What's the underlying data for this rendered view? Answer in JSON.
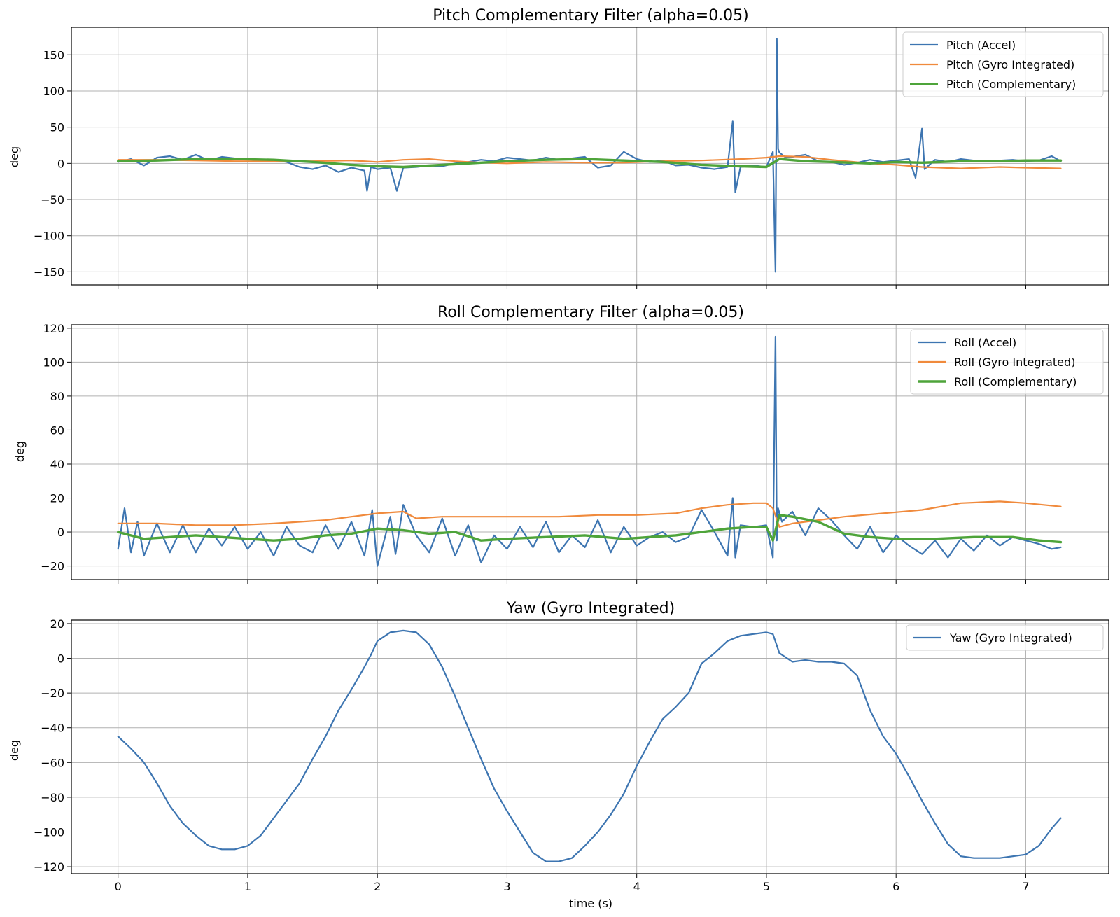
{
  "chart_data": [
    {
      "type": "line",
      "title": "Pitch Complementary Filter (alpha=0.05)",
      "xlabel": "",
      "ylabel": "deg",
      "xlim": [
        -0.36,
        7.64
      ],
      "ylim": [
        -168,
        188
      ],
      "xticks": [
        0,
        1,
        2,
        3,
        4,
        5,
        6,
        7
      ],
      "yticks": [
        -150,
        -100,
        -50,
        0,
        50,
        100,
        150
      ],
      "ytick_labels": [
        "−150",
        "−100",
        "−50",
        "0",
        "50",
        "100",
        "150"
      ],
      "grid": true,
      "legend": "top-right",
      "series": [
        {
          "name": "Pitch (Accel)",
          "color": "#3d75b1",
          "width": 2.2,
          "x": [
            0,
            0.1,
            0.2,
            0.3,
            0.4,
            0.5,
            0.6,
            0.7,
            0.8,
            0.9,
            1.0,
            1.1,
            1.2,
            1.3,
            1.4,
            1.5,
            1.6,
            1.7,
            1.8,
            1.9,
            1.92,
            1.95,
            2.0,
            2.1,
            2.15,
            2.2,
            2.3,
            2.4,
            2.5,
            2.6,
            2.7,
            2.8,
            2.9,
            3.0,
            3.1,
            3.2,
            3.3,
            3.4,
            3.5,
            3.6,
            3.7,
            3.8,
            3.9,
            4.0,
            4.1,
            4.2,
            4.3,
            4.4,
            4.5,
            4.6,
            4.7,
            4.74,
            4.76,
            4.8,
            4.9,
            5.0,
            5.05,
            5.07,
            5.08,
            5.09,
            5.1,
            5.15,
            5.2,
            5.3,
            5.4,
            5.5,
            5.6,
            5.7,
            5.8,
            5.9,
            6.0,
            6.1,
            6.15,
            6.2,
            6.22,
            6.3,
            6.4,
            6.5,
            6.6,
            6.7,
            6.8,
            6.9,
            7.0,
            7.1,
            7.2,
            7.27
          ],
          "values": [
            2,
            6,
            -3,
            8,
            10,
            5,
            12,
            4,
            9,
            7,
            6,
            3,
            4,
            2,
            -5,
            -8,
            -3,
            -12,
            -6,
            -10,
            -38,
            -5,
            -8,
            -6,
            -38,
            -6,
            -5,
            -3,
            -4,
            0,
            2,
            5,
            3,
            8,
            6,
            4,
            8,
            5,
            7,
            9,
            -6,
            -3,
            16,
            6,
            2,
            4,
            -3,
            -2,
            -6,
            -8,
            -5,
            58,
            -40,
            -5,
            -3,
            -5,
            16,
            -150,
            172,
            20,
            15,
            8,
            9,
            12,
            3,
            2,
            -2,
            1,
            5,
            2,
            4,
            6,
            -20,
            48,
            -8,
            5,
            2,
            6,
            4,
            3,
            4,
            5,
            3,
            4,
            10,
            3
          ]
        },
        {
          "name": "Pitch (Gyro Integrated)",
          "color": "#f08a3c",
          "width": 2.2,
          "x": [
            0,
            0.3,
            0.6,
            0.9,
            1.2,
            1.5,
            1.8,
            2.0,
            2.2,
            2.4,
            2.6,
            2.8,
            3.0,
            3.3,
            3.6,
            3.9,
            4.2,
            4.5,
            4.8,
            5.0,
            5.1,
            5.3,
            5.5,
            5.8,
            6.0,
            6.2,
            6.5,
            6.8,
            7.0,
            7.27
          ],
          "values": [
            5,
            5,
            4,
            3,
            3,
            3,
            4,
            2,
            5,
            6,
            3,
            1,
            0,
            2,
            1,
            1,
            3,
            4,
            6,
            8,
            10,
            9,
            5,
            0,
            -2,
            -5,
            -7,
            -5,
            -6,
            -7
          ]
        },
        {
          "name": "Pitch (Complementary)",
          "color": "#4ea43a",
          "width": 3.4,
          "x": [
            0,
            0.3,
            0.6,
            0.9,
            1.2,
            1.5,
            1.8,
            2.0,
            2.2,
            2.4,
            2.6,
            2.8,
            3.0,
            3.3,
            3.6,
            3.9,
            4.2,
            4.5,
            4.8,
            5.0,
            5.1,
            5.3,
            5.5,
            5.8,
            6.0,
            6.2,
            6.5,
            6.8,
            7.0,
            7.27
          ],
          "values": [
            3,
            4,
            6,
            6,
            5,
            2,
            -2,
            -4,
            -5,
            -3,
            -1,
            1,
            3,
            5,
            6,
            4,
            2,
            -2,
            -4,
            -5,
            6,
            3,
            2,
            0,
            2,
            1,
            3,
            3,
            4,
            4
          ]
        }
      ]
    },
    {
      "type": "line",
      "title": "Roll Complementary Filter (alpha=0.05)",
      "xlabel": "",
      "ylabel": "deg",
      "xlim": [
        -0.36,
        7.64
      ],
      "ylim": [
        -28,
        122
      ],
      "xticks": [
        0,
        1,
        2,
        3,
        4,
        5,
        6,
        7
      ],
      "yticks": [
        -20,
        0,
        20,
        40,
        60,
        80,
        100,
        120
      ],
      "ytick_labels": [
        "−20",
        "0",
        "20",
        "40",
        "60",
        "80",
        "100",
        "120"
      ],
      "grid": true,
      "legend": "top-right",
      "series": [
        {
          "name": "Roll (Accel)",
          "color": "#3d75b1",
          "width": 2.2,
          "x": [
            0,
            0.05,
            0.1,
            0.15,
            0.2,
            0.3,
            0.4,
            0.5,
            0.6,
            0.7,
            0.8,
            0.9,
            1.0,
            1.1,
            1.2,
            1.3,
            1.4,
            1.5,
            1.6,
            1.7,
            1.8,
            1.9,
            1.96,
            2.0,
            2.1,
            2.14,
            2.2,
            2.3,
            2.4,
            2.5,
            2.6,
            2.7,
            2.8,
            2.9,
            3.0,
            3.1,
            3.2,
            3.3,
            3.4,
            3.5,
            3.6,
            3.7,
            3.8,
            3.9,
            4.0,
            4.1,
            4.2,
            4.3,
            4.4,
            4.5,
            4.6,
            4.7,
            4.74,
            4.76,
            4.8,
            4.9,
            5.0,
            5.05,
            5.07,
            5.08,
            5.09,
            5.12,
            5.2,
            5.3,
            5.4,
            5.5,
            5.6,
            5.7,
            5.8,
            5.9,
            6.0,
            6.1,
            6.2,
            6.3,
            6.4,
            6.5,
            6.6,
            6.7,
            6.8,
            6.9,
            7.0,
            7.1,
            7.2,
            7.27
          ],
          "values": [
            -10,
            14,
            -12,
            6,
            -14,
            5,
            -12,
            4,
            -12,
            2,
            -8,
            3,
            -10,
            0,
            -14,
            3,
            -8,
            -12,
            4,
            -10,
            6,
            -14,
            13,
            -20,
            9,
            -13,
            16,
            -2,
            -12,
            8,
            -14,
            4,
            -18,
            -2,
            -10,
            3,
            -9,
            6,
            -12,
            -2,
            -9,
            7,
            -12,
            3,
            -8,
            -3,
            0,
            -6,
            -3,
            13,
            0,
            -14,
            20,
            -15,
            4,
            3,
            4,
            -15,
            115,
            -5,
            14,
            6,
            12,
            -2,
            14,
            7,
            -2,
            -10,
            3,
            -12,
            -2,
            -8,
            -13,
            -5,
            -15,
            -4,
            -11,
            -2,
            -8,
            -3,
            -5,
            -7,
            -10,
            -9
          ]
        },
        {
          "name": "Roll (Gyro Integrated)",
          "color": "#f08a3c",
          "width": 2.2,
          "x": [
            0,
            0.3,
            0.6,
            0.9,
            1.2,
            1.4,
            1.6,
            1.8,
            2.0,
            2.2,
            2.3,
            2.5,
            2.8,
            3.1,
            3.4,
            3.7,
            4.0,
            4.3,
            4.5,
            4.7,
            4.9,
            5.0,
            5.05,
            5.1,
            5.2,
            5.4,
            5.6,
            5.9,
            6.2,
            6.5,
            6.8,
            7.0,
            7.27
          ],
          "values": [
            5,
            5,
            4,
            4,
            5,
            6,
            7,
            9,
            11,
            12,
            8,
            9,
            9,
            9,
            9,
            10,
            10,
            11,
            14,
            16,
            17,
            17,
            14,
            3,
            5,
            7,
            9,
            11,
            13,
            17,
            18,
            17,
            15
          ]
        },
        {
          "name": "Roll (Complementary)",
          "color": "#4ea43a",
          "width": 3.4,
          "x": [
            0,
            0.2,
            0.4,
            0.6,
            0.8,
            1.0,
            1.2,
            1.4,
            1.6,
            1.8,
            2.0,
            2.2,
            2.4,
            2.6,
            2.8,
            3.0,
            3.3,
            3.6,
            3.9,
            4.1,
            4.3,
            4.5,
            4.7,
            4.9,
            5.0,
            5.05,
            5.1,
            5.2,
            5.4,
            5.6,
            5.8,
            6.0,
            6.3,
            6.6,
            6.9,
            7.1,
            7.27
          ],
          "values": [
            0,
            -4,
            -3,
            -2,
            -3,
            -4,
            -5,
            -4,
            -2,
            -1,
            2,
            1,
            -1,
            0,
            -5,
            -4,
            -3,
            -2,
            -4,
            -3,
            -2,
            0,
            2,
            3,
            3,
            -5,
            10,
            9,
            6,
            -1,
            -3,
            -4,
            -4,
            -3,
            -3,
            -5,
            -6
          ]
        }
      ]
    },
    {
      "type": "line",
      "title": "Yaw (Gyro Integrated)",
      "xlabel": "time (s)",
      "ylabel": "deg",
      "xlim": [
        -0.36,
        7.64
      ],
      "ylim": [
        -124,
        22
      ],
      "xticks": [
        0,
        1,
        2,
        3,
        4,
        5,
        6,
        7
      ],
      "yticks": [
        -120,
        -100,
        -80,
        -60,
        -40,
        -20,
        0,
        20
      ],
      "ytick_labels": [
        "−120",
        "−100",
        "−80",
        "−60",
        "−40",
        "−20",
        "0",
        "20"
      ],
      "grid": true,
      "legend": "top-right",
      "series": [
        {
          "name": "Yaw (Gyro Integrated)",
          "color": "#3d75b1",
          "width": 2.2,
          "x": [
            0,
            0.1,
            0.2,
            0.3,
            0.4,
            0.5,
            0.6,
            0.7,
            0.8,
            0.9,
            1.0,
            1.1,
            1.2,
            1.3,
            1.4,
            1.5,
            1.6,
            1.7,
            1.8,
            1.9,
            1.95,
            2.0,
            2.1,
            2.2,
            2.3,
            2.4,
            2.5,
            2.6,
            2.7,
            2.8,
            2.9,
            3.0,
            3.1,
            3.2,
            3.3,
            3.4,
            3.5,
            3.6,
            3.7,
            3.8,
            3.9,
            4.0,
            4.1,
            4.2,
            4.3,
            4.4,
            4.5,
            4.55,
            4.6,
            4.7,
            4.8,
            4.9,
            5.0,
            5.05,
            5.1,
            5.2,
            5.3,
            5.4,
            5.5,
            5.6,
            5.7,
            5.8,
            5.9,
            6.0,
            6.1,
            6.2,
            6.3,
            6.4,
            6.5,
            6.6,
            6.7,
            6.8,
            6.9,
            7.0,
            7.1,
            7.2,
            7.27
          ],
          "values": [
            -45,
            -52,
            -60,
            -72,
            -85,
            -95,
            -102,
            -108,
            -110,
            -110,
            -108,
            -102,
            -92,
            -82,
            -72,
            -58,
            -45,
            -30,
            -18,
            -5,
            2,
            10,
            15,
            16,
            15,
            8,
            -5,
            -22,
            -40,
            -58,
            -75,
            -88,
            -100,
            -112,
            -117,
            -117,
            -115,
            -108,
            -100,
            -90,
            -78,
            -62,
            -48,
            -35,
            -28,
            -20,
            -3,
            0,
            3,
            10,
            13,
            14,
            15,
            14,
            3,
            -2,
            -1,
            -2,
            -2,
            -3,
            -10,
            -30,
            -45,
            -55,
            -68,
            -82,
            -95,
            -107,
            -114,
            -115,
            -115,
            -115,
            -114,
            -113,
            -108,
            -98,
            -92
          ]
        }
      ]
    }
  ]
}
